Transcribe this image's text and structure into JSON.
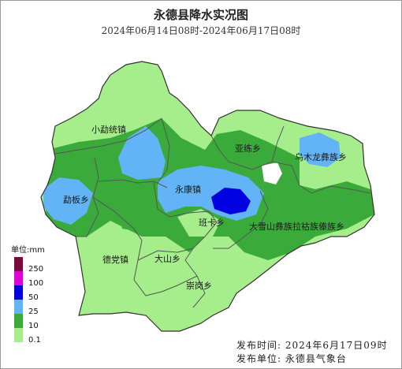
{
  "header": {
    "title": "永德县降水实况图",
    "subtitle": "2024年06月14日08时-2024年06月17日08时"
  },
  "regions": [
    {
      "name": "小勐统镇"
    },
    {
      "name": "亚练乡"
    },
    {
      "name": "乌木龙彝族乡"
    },
    {
      "name": "勐板乡"
    },
    {
      "name": "永康镇"
    },
    {
      "name": "班卡乡"
    },
    {
      "name": "大雪山彝族拉祜族傣族乡"
    },
    {
      "name": "德党镇"
    },
    {
      "name": "大山乡"
    },
    {
      "name": "崇岗乡"
    }
  ],
  "legend": {
    "title": "单位:mm",
    "items": [
      {
        "value": "250",
        "color": "#7a0a3c"
      },
      {
        "value": "100",
        "color": "#e000d8"
      },
      {
        "value": "50",
        "color": "#0000e0"
      },
      {
        "value": "25",
        "color": "#62b4f6"
      },
      {
        "value": "10",
        "color": "#3aaa3a"
      },
      {
        "value": "0.1",
        "color": "#a6ee8c"
      }
    ]
  },
  "footer": {
    "release_time": "发布时间: 2024年6月17日09时",
    "release_unit": "发布单位: 永德县气象台"
  },
  "colors": {
    "light_green": "#a6ee8c",
    "green": "#3aaa3a",
    "blue": "#62b4f6",
    "dark_blue": "#0000e0",
    "no_rain": "#ffffff"
  }
}
